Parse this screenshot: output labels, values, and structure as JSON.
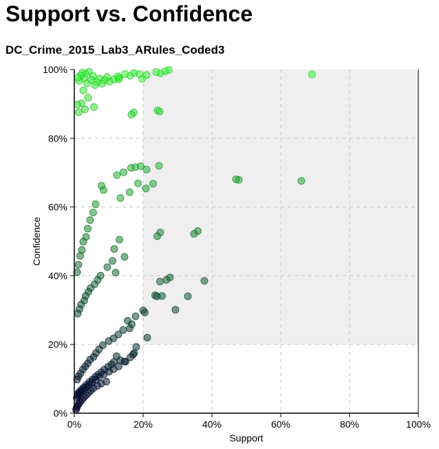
{
  "title": "Support vs. Confidence",
  "subtitle": "DC_Crime_2015_Lab3_ARules_Coded3",
  "chart_data": {
    "type": "scatter",
    "xlabel": "Support",
    "ylabel": "Confidence",
    "xlim": [
      0,
      100
    ],
    "ylim": [
      0,
      100
    ],
    "x_ticks": [
      "0%",
      "20%",
      "40%",
      "60%",
      "80%",
      "100%"
    ],
    "y_ticks": [
      "0%",
      "20%",
      "40%",
      "60%",
      "80%",
      "100%"
    ],
    "grid": true,
    "shaded_region": {
      "x": [
        20,
        100
      ],
      "y": [
        20,
        100
      ]
    },
    "color_encoding": "confidence (dark navy at 0% to bright green at 100%)",
    "colors": {
      "low": "#000033",
      "high": "#33ff33",
      "shade": "#efefef",
      "grid": "#c8c8c8"
    },
    "series": [
      {
        "x": [
          69.1,
          47.8,
          47.0,
          66.0,
          27.5,
          26.4,
          25.0,
          23.8,
          21.0,
          19.7,
          18.9,
          17.3,
          16.2,
          14.7,
          13.1,
          12.9,
          12.6,
          11.5,
          10.2,
          9.5,
          8.7,
          8.1,
          7.3,
          6.6,
          6.0,
          5.4,
          4.9,
          4.3,
          3.7,
          3.2,
          2.8,
          2.3,
          1.9,
          1.4,
          1.0,
          2.6,
          4.0,
          5.7,
          3.1,
          2.1,
          1.3,
          0.9,
          24.2,
          24.8,
          17.3,
          16.6,
          24.6,
          17.7,
          21.0,
          19.3,
          16.5,
          22.9,
          14.3,
          12.4,
          18.5,
          20.8,
          16.1,
          13.4,
          7.9,
          8.5,
          6.2,
          5.5,
          4.6,
          3.9,
          3.4,
          2.6,
          2.2,
          1.7,
          1.2,
          0.8,
          35.9,
          34.8,
          25.0,
          24.1,
          13.1,
          11.6,
          14.6,
          11.1,
          9.6,
          12.0,
          7.6,
          6.8,
          5.9,
          4.7,
          4.1,
          3.3,
          2.9,
          2.0,
          1.5,
          1.0,
          37.8,
          27.8,
          26.8,
          24.9,
          25.5,
          33.0,
          23.5,
          24.0,
          20.0,
          20.5,
          17.8,
          15.5,
          16.7,
          16.1,
          14.2,
          12.8,
          11.4,
          10.0,
          8.3,
          7.2,
          6.3,
          5.6,
          4.6,
          3.9,
          3.2,
          2.5,
          1.8,
          1.2,
          0.8,
          29.4,
          21.2,
          18.0,
          17.4,
          16.3,
          14.9,
          12.3,
          13.4,
          11.5,
          10.8,
          9.8,
          8.7,
          7.8,
          6.9,
          6.1,
          5.3,
          4.4,
          3.6,
          2.8,
          2.1,
          1.4,
          0.9,
          17.1,
          14.6,
          12.9,
          11.4,
          10.1,
          8.6,
          7.3,
          6.2,
          5.1,
          4.3,
          3.5,
          2.7,
          2.0,
          1.5,
          1.0,
          0.7,
          9.3,
          7.8,
          6.7,
          5.6,
          4.8,
          4.1,
          3.4,
          2.8,
          2.2,
          1.7,
          1.3,
          0.9,
          0.7,
          0.5
        ],
        "y": [
          98.6,
          67.9,
          68.1,
          67.6,
          99.9,
          99.5,
          98.9,
          99.3,
          98.4,
          97.3,
          98.7,
          99.0,
          98.2,
          98.7,
          97.6,
          97.2,
          98.0,
          97.1,
          96.5,
          97.8,
          96.9,
          95.9,
          97.4,
          96.3,
          95.5,
          98.1,
          97.0,
          99.4,
          96.0,
          98.8,
          97.5,
          99.1,
          98.3,
          96.7,
          97.7,
          93.9,
          91.8,
          89.1,
          88.4,
          90.2,
          87.6,
          89.8,
          88.1,
          87.8,
          87.5,
          86.9,
          72.0,
          71.6,
          70.9,
          71.9,
          71.4,
          66.8,
          70.1,
          69.3,
          66.9,
          65.4,
          64.3,
          62.6,
          66.2,
          64.9,
          60.8,
          58.4,
          56.2,
          53.7,
          51.3,
          49.9,
          47.5,
          45.8,
          43.2,
          41.0,
          53.0,
          52.2,
          52.6,
          51.5,
          50.5,
          47.8,
          45.5,
          44.3,
          42.5,
          40.9,
          40.0,
          38.8,
          37.5,
          36.4,
          35.3,
          34.1,
          32.8,
          31.6,
          30.3,
          29.0,
          38.5,
          39.5,
          38.8,
          38.3,
          34.1,
          34.0,
          34.3,
          34.0,
          29.9,
          29.3,
          28.2,
          26.9,
          25.9,
          24.7,
          24.2,
          22.9,
          21.8,
          21.0,
          19.8,
          18.6,
          17.5,
          16.4,
          15.6,
          14.5,
          13.6,
          12.7,
          11.6,
          10.7,
          9.8,
          30.1,
          22.0,
          19.3,
          17.5,
          16.3,
          15.0,
          16.6,
          15.4,
          14.9,
          14.2,
          13.5,
          12.7,
          11.9,
          11.2,
          10.6,
          9.8,
          9.1,
          8.3,
          7.6,
          6.9,
          6.2,
          5.5,
          17.1,
          15.0,
          13.6,
          12.8,
          12.1,
          11.3,
          10.5,
          9.7,
          8.9,
          8.3,
          7.6,
          7.0,
          6.3,
          5.7,
          5.1,
          4.5,
          9.2,
          8.6,
          8.0,
          7.3,
          6.6,
          5.9,
          5.2,
          4.6,
          3.9,
          3.3,
          2.7,
          2.1,
          1.6,
          1.0
        ]
      }
    ]
  }
}
